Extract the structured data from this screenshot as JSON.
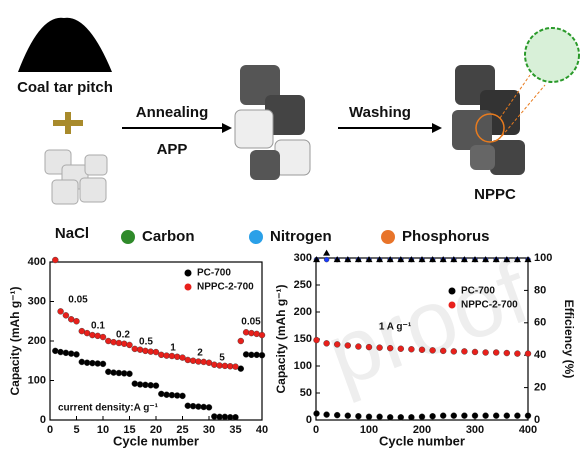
{
  "schematic": {
    "precursor": "Coal tar pitch",
    "template": "NaCl",
    "step1": "Annealing",
    "step1_agent": "APP",
    "step2": "Washing",
    "product": "NPPC",
    "legend": [
      "Carbon",
      "Nitrogen",
      "Phosphorus"
    ]
  },
  "watermark": "proof",
  "chart_data": [
    {
      "type": "scatter",
      "x": [
        1,
        2,
        3,
        4,
        5,
        6,
        7,
        8,
        9,
        10,
        11,
        12,
        13,
        14,
        15,
        16,
        17,
        18,
        19,
        20,
        21,
        22,
        23,
        24,
        25,
        26,
        27,
        28,
        29,
        30,
        31,
        32,
        33,
        34,
        35,
        36,
        37,
        38,
        39,
        40
      ],
      "series": [
        {
          "name": "PC-700",
          "color": "#000000",
          "values": [
            175,
            172,
            170,
            168,
            166,
            147,
            145,
            144,
            143,
            142,
            122,
            120,
            119,
            118,
            117,
            92,
            90,
            89,
            88,
            87,
            66,
            64,
            63,
            62,
            61,
            36,
            35,
            34,
            33,
            32,
            9,
            8,
            8,
            7,
            7,
            130,
            166,
            165,
            165,
            164
          ]
        },
        {
          "name": "NPPC-2-700",
          "color": "#e8201b",
          "values": [
            405,
            275,
            265,
            255,
            250,
            225,
            220,
            215,
            213,
            210,
            200,
            197,
            195,
            193,
            190,
            180,
            178,
            175,
            173,
            172,
            165,
            163,
            162,
            160,
            158,
            152,
            150,
            148,
            147,
            145,
            140,
            138,
            137,
            136,
            135,
            200,
            222,
            220,
            218,
            215
          ]
        }
      ],
      "xlim": [
        0,
        40
      ],
      "xticks": [
        0,
        5,
        10,
        15,
        20,
        25,
        30,
        35,
        40
      ],
      "ylim": [
        0,
        400
      ],
      "yticks": [
        0,
        100,
        200,
        300,
        400
      ],
      "xlabel": "Cycle number",
      "ylabel": "Capacity (mAh g⁻¹)",
      "annotations": [
        "0.05",
        "0.1",
        "0.2",
        "0.5",
        "1",
        "2",
        "5",
        "0.05",
        "current density:A g⁻¹"
      ],
      "legend": "upper right"
    },
    {
      "type": "scatter",
      "x": [
        1,
        20,
        40,
        60,
        80,
        100,
        120,
        140,
        160,
        180,
        200,
        220,
        240,
        260,
        280,
        300,
        320,
        340,
        360,
        380,
        400
      ],
      "series": [
        {
          "name": "PC-700",
          "color": "#000000",
          "values": [
            12,
            10,
            9,
            8,
            7,
            6,
            6,
            5,
            5,
            5,
            6,
            7,
            8,
            8,
            8,
            8,
            8,
            8,
            8,
            8,
            8
          ]
        },
        {
          "name": "NPPC-2-700",
          "color": "#e8201b",
          "values": [
            148,
            142,
            140,
            138,
            136,
            135,
            134,
            133,
            132,
            131,
            130,
            129,
            128,
            127,
            127,
            126,
            125,
            125,
            124,
            123,
            123
          ]
        },
        {
          "color": "#1a3cff",
          "axis": "y2",
          "values": [
            99,
            99,
            99,
            99,
            99,
            99,
            99,
            99,
            99,
            99,
            99,
            99,
            99,
            99,
            99,
            99,
            99,
            99,
            99,
            99,
            99
          ]
        },
        {
          "color": "#000000",
          "axis": "y2",
          "marker": "triangle",
          "values": [
            99,
            103,
            99,
            99,
            99,
            99,
            99,
            99,
            99,
            99,
            99,
            99,
            99,
            99,
            99,
            99,
            99,
            99,
            99,
            99,
            99
          ]
        }
      ],
      "xlim": [
        0,
        400
      ],
      "xticks": [
        0,
        100,
        200,
        300,
        400
      ],
      "ylim": [
        0,
        300
      ],
      "yticks": [
        0,
        50,
        100,
        150,
        200,
        250,
        300
      ],
      "y2lim": [
        0,
        100
      ],
      "y2ticks": [
        0,
        20,
        40,
        60,
        80,
        100
      ],
      "xlabel": "Cycle number",
      "ylabel": "Capacity (mAh g⁻¹)",
      "y2label": "Efficiency (%)",
      "annotations": [
        "1 A g⁻¹"
      ],
      "legend": "center right"
    }
  ]
}
